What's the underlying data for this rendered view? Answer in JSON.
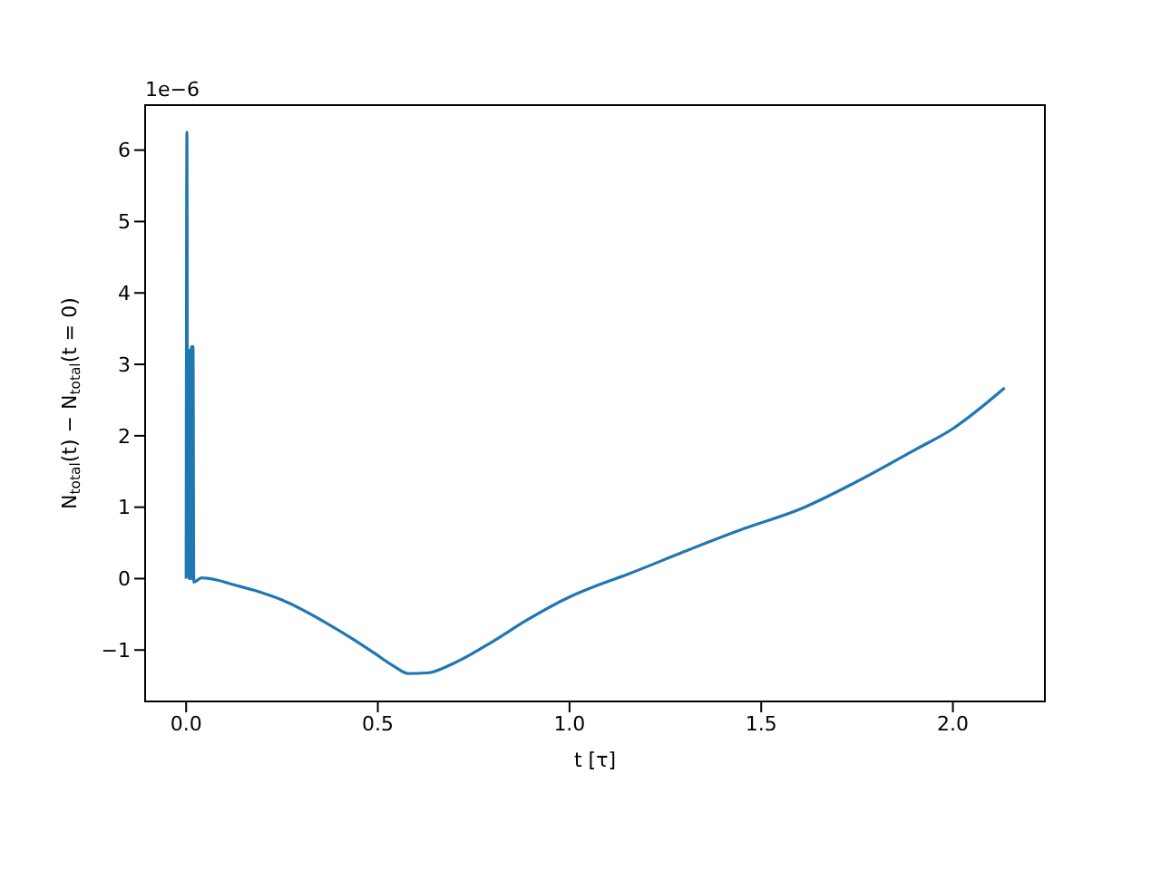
{
  "chart_data": {
    "type": "line",
    "xlabel": "t [τ]",
    "ylabel": "N$_{total}$(t) − N$_{total}$(t = 0)",
    "annotations": [
      "1e−6"
    ],
    "xlim": [
      -0.107,
      2.24
    ],
    "ylim": [
      -1.72,
      6.63
    ],
    "xticks": [
      {
        "value": 0,
        "label": "0.0"
      },
      0.5,
      {
        "value": 1,
        "label": "1.0"
      },
      1.5,
      {
        "value": 2,
        "label": "2.0"
      }
    ],
    "yticks": [
      {
        "value": -1,
        "label": "−1"
      },
      0,
      1,
      2,
      3,
      4,
      5,
      6
    ],
    "grid": false,
    "legend": false,
    "marker": "none",
    "line_style": "solid",
    "series": [
      {
        "color": "#1f77b4",
        "x": [
          0,
          0.002,
          0.004,
          0.006,
          0.008,
          0.01,
          0.012,
          0.014,
          0.016,
          0.018,
          0.02,
          0.04,
          0.08,
          0.12,
          0.175,
          0.25,
          0.365,
          0.43,
          0.49,
          0.54,
          0.58,
          0.63,
          0.7,
          0.8,
          0.886,
          0.995,
          1.08,
          1.156,
          1.3,
          1.455,
          1.6,
          1.75,
          1.9,
          2.0,
          2.135
        ],
        "values": [
          0,
          6.25,
          0.05,
          3.2,
          0,
          3.2,
          0,
          3.25,
          0,
          3.25,
          -0.05,
          0.01,
          -0.02,
          -0.08,
          -0.16,
          -0.3,
          -0.62,
          -0.83,
          -1.04,
          -1.22,
          -1.33,
          -1.32,
          -1.18,
          -0.88,
          -0.59,
          -0.27,
          -0.08,
          0.07,
          0.38,
          0.7,
          0.97,
          1.36,
          1.8,
          2.1,
          2.67
        ]
      }
    ]
  }
}
